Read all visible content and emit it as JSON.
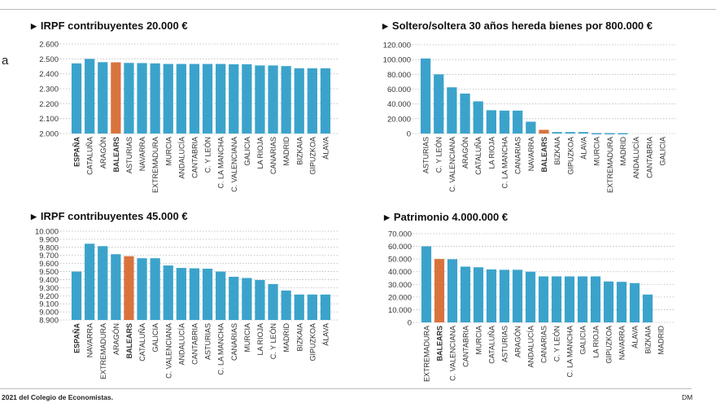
{
  "fragment_text": "a",
  "footer": {
    "source": "2021 del Colegio de Economistas.",
    "credit": "DM"
  },
  "colors": {
    "bar": "#3ba3cb",
    "highlight": "#d9733e",
    "grid": "#b8b8b8"
  },
  "chart_data": [
    {
      "type": "bar",
      "title": "IRPF contribuyentes 20.000 €",
      "ylim": [
        2000,
        2600
      ],
      "yticks": [
        2000,
        2100,
        2200,
        2300,
        2400,
        2500,
        2600
      ],
      "ytick_labels": [
        "2.000",
        "2.100",
        "2.200",
        "2.300",
        "2.400",
        "2.500",
        "2.600"
      ],
      "highlight": "BALEARS",
      "bold": [
        "ESPAÑA",
        "BALEARS"
      ],
      "categories": [
        "ESPAÑA",
        "CATALUÑA",
        "ARAGÓN",
        "BALEARS",
        "ASTURIAS",
        "NAVARRA",
        "EXTREMADURA",
        "MURCIA",
        "ANDALUCÍA",
        "CANTABRIA",
        "C. Y LEÓN",
        "C. LA MANCHA",
        "C. VALENCIANA",
        "GALICIA",
        "LA RIOJA",
        "CANARIAS",
        "MADRID",
        "BIZKAIA",
        "GIPUZKOA",
        "ÁLAVA"
      ],
      "values": [
        2470,
        2500,
        2478,
        2477,
        2473,
        2472,
        2470,
        2466,
        2466,
        2466,
        2466,
        2466,
        2464,
        2464,
        2456,
        2456,
        2452,
        2437,
        2437,
        2437
      ]
    },
    {
      "type": "bar",
      "title": "Soltero/soltera 30 años hereda bienes por 800.000 €",
      "ylim": [
        0,
        120000
      ],
      "yticks": [
        0,
        20000,
        40000,
        60000,
        80000,
        100000,
        120000
      ],
      "ytick_labels": [
        "0",
        "20.000",
        "40.000",
        "60.000",
        "80.000",
        "100.000",
        "120.000"
      ],
      "highlight": "BALEARS",
      "bold": [
        "BALEARS"
      ],
      "categories": [
        "ASTURIAS",
        "C. Y LEÓN",
        "C. VALENCIANA",
        "ARAGÓN",
        "CATALUÑA",
        "LA RIOJA",
        "C. LA MANCHA",
        "CANARIAS",
        "NAVARRA",
        "BALEARS",
        "BIZKAIA",
        "GIPUZKOA",
        "ÁLAVA",
        "MURCIA",
        "EXTREMADURA",
        "MADRID",
        "ANDALUCÍA",
        "CANTABRIA",
        "GALICIA"
      ],
      "values": [
        101500,
        80000,
        62500,
        54000,
        43500,
        31500,
        31000,
        31000,
        16000,
        5000,
        2000,
        2000,
        2000,
        500,
        500,
        500,
        0,
        0,
        0
      ]
    },
    {
      "type": "bar",
      "title": "IRPF contribuyentes 45.000 €",
      "ylim": [
        8900,
        10000
      ],
      "yticks": [
        8900,
        9000,
        9100,
        9200,
        9300,
        9400,
        9500,
        9600,
        9700,
        9800,
        9900,
        10000
      ],
      "ytick_labels": [
        "8.900",
        "9.000",
        "9.100",
        "9.200",
        "9.300",
        "9.400",
        "9.500",
        "9.600",
        "9.700",
        "9.800",
        "9.900",
        "10.000"
      ],
      "highlight": "BALEARS",
      "bold": [
        "ESPAÑA",
        "BALEARS"
      ],
      "categories": [
        "ESPAÑA",
        "NAVARRA",
        "EXTREMADURA",
        "ARAGÓN",
        "BALEARS",
        "CATALUÑA",
        "GALICIA",
        "C. VALENCIANA",
        "ANDALUCÍA",
        "CANTABRIA",
        "ASTURIAS",
        "C. LA MANCHA",
        "CANARIAS",
        "MURCIA",
        "LA RIOJA",
        "C. Y LEÓN",
        "MADRID",
        "BIZKAIA",
        "GIPUZKOA",
        "ÁLAVA"
      ],
      "values": [
        9500,
        9845,
        9815,
        9715,
        9690,
        9665,
        9665,
        9575,
        9545,
        9540,
        9535,
        9500,
        9435,
        9420,
        9395,
        9345,
        9265,
        9215,
        9215,
        9215
      ]
    },
    {
      "type": "bar",
      "title": "Patrimonio 4.000.000 €",
      "ylim": [
        0,
        70000
      ],
      "yticks": [
        0,
        10000,
        20000,
        30000,
        40000,
        50000,
        60000,
        70000
      ],
      "ytick_labels": [
        "0",
        "10.000",
        "20.000",
        "30.000",
        "40.000",
        "50.000",
        "60.000",
        "70.000"
      ],
      "highlight": "BALEARS",
      "bold": [
        "BALEARS"
      ],
      "categories": [
        "EXTREMADURA",
        "BALEARS",
        "C. VALENCIANA",
        "CANTABRIA",
        "MURCIA",
        "CATALUÑA",
        "ASTURIAS",
        "ARAGÓN",
        "ANDALUCÍA",
        "CANARIAS",
        "C. Y LEÓN",
        "C. LA MANCHA",
        "GALICIA",
        "LA RIOJA",
        "GIPUZKOA",
        "NAVARRA",
        "ÁLAVA",
        "BIZKAIA",
        "MADRID"
      ],
      "values": [
        60000,
        50000,
        49800,
        44000,
        43500,
        41800,
        41500,
        41500,
        40000,
        36300,
        36300,
        36300,
        36300,
        36300,
        32300,
        32000,
        31000,
        22000,
        0
      ]
    }
  ]
}
